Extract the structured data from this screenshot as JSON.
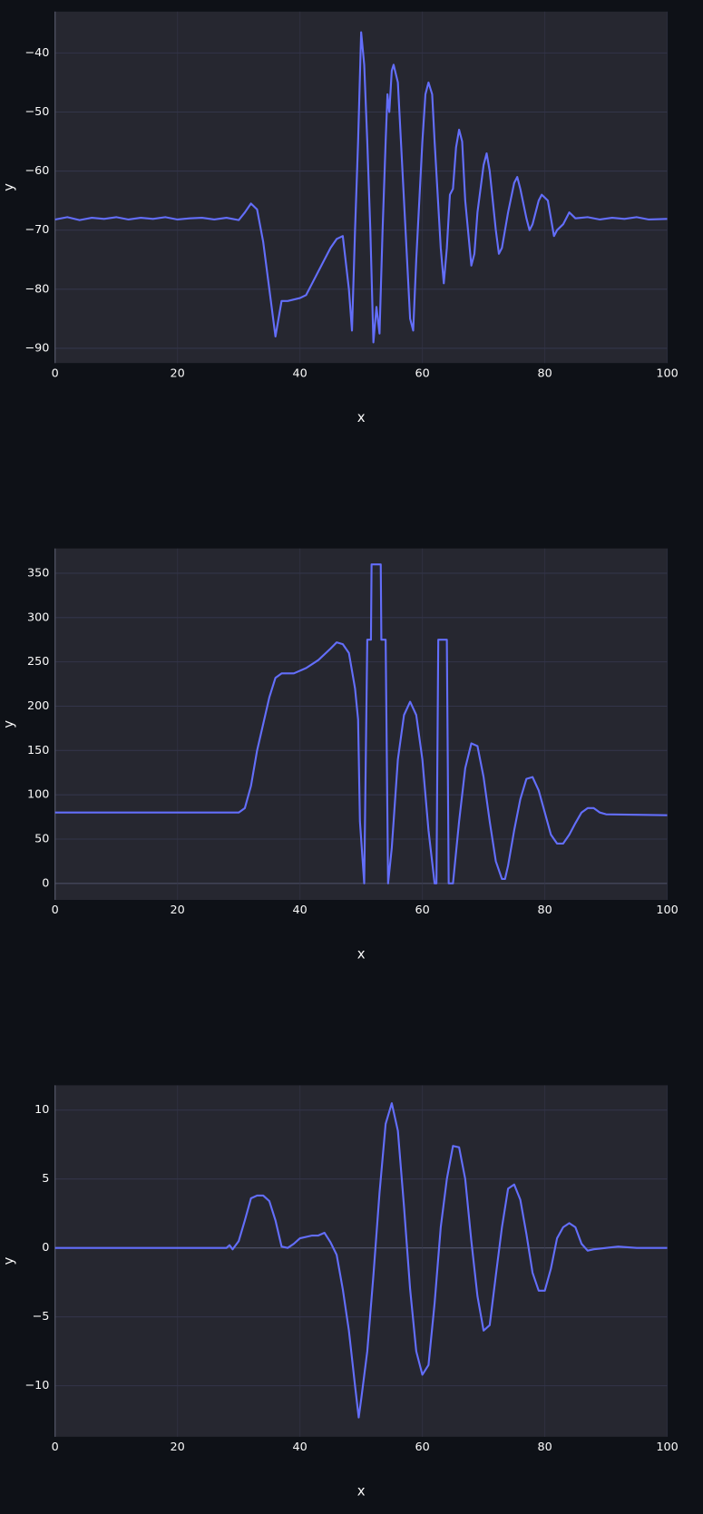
{
  "chart_data": [
    {
      "type": "line",
      "xlabel": "x",
      "ylabel": "y",
      "color": "#636efa",
      "grid": true,
      "xlim": [
        0,
        100
      ],
      "xticks": [
        0,
        20,
        40,
        60,
        80,
        100
      ],
      "ylim": [
        -92.5,
        -33
      ],
      "yticks": [
        {
          "value": -90,
          "label": "−90"
        },
        {
          "value": -80,
          "label": "−80"
        },
        {
          "value": -70,
          "label": "−70"
        },
        {
          "value": -60,
          "label": "−60"
        },
        {
          "value": -50,
          "label": "−50"
        },
        {
          "value": -40,
          "label": "−40"
        }
      ],
      "x": [
        0,
        2,
        4,
        6,
        8,
        10,
        12,
        14,
        16,
        18,
        20,
        22,
        24,
        26,
        28,
        30,
        31,
        32,
        33,
        34,
        35,
        36,
        37,
        38,
        40,
        41,
        42,
        43,
        44,
        45,
        46,
        47,
        48,
        48.5,
        49,
        49.5,
        50,
        50.5,
        51,
        51.5,
        52,
        52.5,
        53,
        53.5,
        54,
        54.3,
        54.6,
        55,
        55.3,
        56,
        57,
        58,
        58.5,
        59,
        60,
        60.5,
        61,
        61.6,
        62,
        63,
        63.5,
        64,
        64.5,
        65,
        65.5,
        66,
        66.5,
        67,
        68,
        68.5,
        69,
        70,
        70.5,
        71,
        72,
        72.5,
        73,
        74,
        75,
        75.5,
        76,
        77,
        77.5,
        78,
        79,
        79.5,
        80.5,
        81.5,
        82,
        83,
        84,
        85,
        87,
        89,
        91,
        93,
        95,
        97,
        100
      ],
      "values": [
        -68.2,
        -67.8,
        -68.3,
        -67.9,
        -68.1,
        -67.8,
        -68.2,
        -67.9,
        -68.1,
        -67.8,
        -68.2,
        -68.0,
        -67.9,
        -68.2,
        -67.9,
        -68.3,
        -67,
        -65.5,
        -66.5,
        -72,
        -80,
        -88,
        -82,
        -82,
        -81.5,
        -81,
        -79,
        -77,
        -75,
        -73,
        -71.5,
        -71,
        -80,
        -87,
        -70,
        -55,
        -36.5,
        -42,
        -55,
        -70,
        -89,
        -83,
        -87.5,
        -70,
        -55,
        -47,
        -50,
        -43,
        -42,
        -45,
        -65,
        -85,
        -87,
        -75,
        -55,
        -47,
        -45,
        -47,
        -55,
        -73,
        -79,
        -73,
        -64,
        -63,
        -56,
        -53,
        -55,
        -65,
        -76,
        -74,
        -67,
        -59,
        -57,
        -60,
        -70,
        -74,
        -73,
        -67,
        -62,
        -61,
        -63,
        -68,
        -70,
        -69,
        -65,
        -64,
        -65,
        -71,
        -70,
        -69,
        -67,
        -68,
        -67.8,
        -68.2,
        -67.9,
        -68.1,
        -67.8,
        -68.2,
        -68.1
      ]
    },
    {
      "type": "line",
      "xlabel": "x",
      "ylabel": "y",
      "color": "#636efa",
      "grid": true,
      "xlim": [
        0,
        100
      ],
      "xticks": [
        0,
        20,
        40,
        60,
        80,
        100
      ],
      "ylim": [
        -18.6,
        378
      ],
      "yticks": [
        0,
        50,
        100,
        150,
        200,
        250,
        300,
        350
      ],
      "x": [
        0,
        10,
        20,
        30,
        31,
        32,
        33,
        35,
        36,
        37,
        39,
        41,
        43,
        45,
        46,
        47,
        48,
        49,
        49.5,
        49.8,
        50.5,
        51,
        51.6,
        51.7,
        53.2,
        53.3,
        54,
        54.4,
        55,
        56,
        57,
        58,
        59,
        60,
        61,
        61.5,
        62,
        62.3,
        62.6,
        64,
        64.3,
        65,
        66,
        67,
        68,
        69,
        70,
        71,
        72,
        73,
        73.5,
        74,
        75,
        76,
        77,
        78,
        79,
        80,
        81,
        82,
        83,
        84,
        85,
        86,
        87,
        88,
        89,
        90,
        100
      ],
      "values": [
        80,
        80,
        80,
        80,
        85,
        110,
        150,
        210,
        232,
        237,
        237,
        243,
        252,
        265,
        272,
        270,
        260,
        220,
        185,
        70,
        0,
        275,
        275,
        360,
        360,
        275,
        275,
        0,
        40,
        140,
        190,
        205,
        190,
        140,
        60,
        30,
        0,
        0,
        275,
        275,
        0,
        0,
        70,
        130,
        158,
        155,
        120,
        70,
        25,
        5,
        5,
        20,
        60,
        95,
        118,
        120,
        105,
        80,
        55,
        45,
        45,
        55,
        68,
        80,
        85,
        85,
        80,
        78,
        77
      ]
    },
    {
      "type": "line",
      "xlabel": "x",
      "ylabel": "y",
      "color": "#636efa",
      "grid": true,
      "xlim": [
        0,
        100
      ],
      "xticks": [
        0,
        20,
        40,
        60,
        80,
        100
      ],
      "ylim": [
        -13.7,
        11.8
      ],
      "yticks": [
        {
          "value": -10,
          "label": "−10"
        },
        {
          "value": -5,
          "label": "−5"
        },
        0,
        5,
        10
      ],
      "x": [
        0,
        28,
        28.5,
        29,
        30,
        31,
        32,
        33,
        34,
        35,
        36,
        37,
        38,
        39,
        40,
        42,
        43,
        44,
        45,
        46,
        47,
        48,
        49,
        49.6,
        50,
        51,
        52,
        53,
        54,
        55,
        56,
        57,
        58,
        59,
        60,
        61,
        62,
        63,
        64,
        65,
        66,
        67,
        68,
        69,
        70,
        71,
        72,
        73,
        74,
        75,
        76,
        77,
        78,
        79,
        80,
        81,
        82,
        83,
        84,
        85,
        86,
        87,
        88,
        90,
        92,
        95,
        100
      ],
      "values": [
        0,
        0,
        0.2,
        -0.1,
        0.5,
        2,
        3.6,
        3.8,
        3.8,
        3.4,
        2,
        0.1,
        0,
        0.3,
        0.7,
        0.9,
        0.9,
        1.1,
        0.4,
        -0.5,
        -3,
        -6,
        -10,
        -12.3,
        -11,
        -7.5,
        -2,
        4,
        9,
        10.5,
        8.5,
        3,
        -3,
        -7.5,
        -9.2,
        -8.5,
        -4,
        1.5,
        5,
        7.4,
        7.3,
        5,
        0.5,
        -3.5,
        -6,
        -5.6,
        -2,
        1.5,
        4.3,
        4.6,
        3.5,
        1,
        -1.8,
        -3.1,
        -3.1,
        -1.5,
        0.7,
        1.5,
        1.8,
        1.5,
        0.3,
        -0.2,
        -0.1,
        0,
        0.1,
        0,
        0
      ]
    }
  ]
}
